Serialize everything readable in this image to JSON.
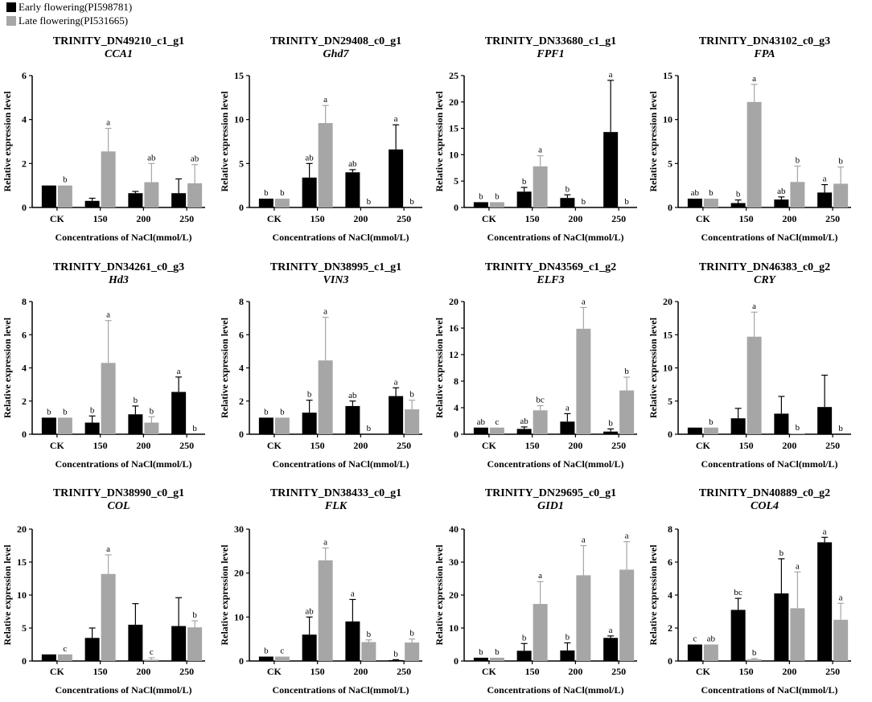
{
  "legend": {
    "early_label": "Early flowering(PI598781)",
    "late_label": "Late flowering(PI531665)",
    "early_color": "#000000",
    "late_color": "#a6a6a6"
  },
  "chart_data": [
    {
      "type": "bar",
      "title": "TRINITY_DN49210_c1_g1",
      "gene": "CCA1",
      "ylabel": "Relative expression level",
      "xlabel": "Concentrations of NaCl(mmol/L)",
      "categories": [
        "CK",
        "150",
        "200",
        "250"
      ],
      "ylim": [
        0,
        6
      ],
      "yticks": [
        "0",
        "2",
        "4",
        "6"
      ],
      "series": [
        {
          "name": "Early flowering(PI598781)",
          "values": [
            1.0,
            0.3,
            0.65,
            0.65
          ],
          "errors": [
            0,
            0.12,
            0.08,
            0.65
          ],
          "letters": [
            "",
            "",
            "",
            ""
          ]
        },
        {
          "name": "Late flowering(PI531665)",
          "values": [
            1.0,
            2.55,
            1.15,
            1.1
          ],
          "errors": [
            0,
            1.05,
            0.85,
            0.85
          ],
          "letters": [
            "b",
            "a",
            "ab",
            "ab"
          ]
        }
      ]
    },
    {
      "type": "bar",
      "title": "TRINITY_DN29408_c0_g1",
      "gene": "Ghd7",
      "ylabel": "Relative expression level",
      "xlabel": "Concentrations of NaCl(mmol/L)",
      "categories": [
        "CK",
        "150",
        "200",
        "250"
      ],
      "ylim": [
        0,
        15
      ],
      "yticks": [
        "0",
        "5",
        "10",
        "15"
      ],
      "series": [
        {
          "name": "Early flowering(PI598781)",
          "values": [
            1.0,
            3.4,
            4.0,
            6.6
          ],
          "errors": [
            0,
            1.6,
            0.3,
            2.8
          ],
          "letters": [
            "b",
            "ab",
            "ab",
            "a"
          ]
        },
        {
          "name": "Late flowering(PI531665)",
          "values": [
            1.0,
            9.6,
            0,
            0
          ],
          "errors": [
            0,
            2.0,
            0,
            0
          ],
          "letters": [
            "b",
            "a",
            "b",
            "b"
          ]
        }
      ]
    },
    {
      "type": "bar",
      "title": "TRINITY_DN33680_c1_g1",
      "gene": "FPF1",
      "ylabel": "Relative expression level",
      "xlabel": "Concentrations of NaCl(mmol/L)",
      "categories": [
        "CK",
        "150",
        "200",
        "250"
      ],
      "ylim": [
        0,
        25
      ],
      "yticks": [
        "0",
        "5",
        "10",
        "15",
        "20",
        "25"
      ],
      "series": [
        {
          "name": "Early flowering(PI598781)",
          "values": [
            1.0,
            3.0,
            1.8,
            14.3
          ],
          "errors": [
            0,
            0.8,
            0.6,
            9.8
          ],
          "letters": [
            "b",
            "b",
            "b",
            "a"
          ]
        },
        {
          "name": "Late flowering(PI531665)",
          "values": [
            1.0,
            7.8,
            0,
            0
          ],
          "errors": [
            0,
            2.0,
            0,
            0
          ],
          "letters": [
            "b",
            "a",
            "b",
            "b"
          ]
        }
      ]
    },
    {
      "type": "bar",
      "title": "TRINITY_DN43102_c0_g3",
      "gene": "FPA",
      "ylabel": "Relative expression level",
      "xlabel": "Concentrations of NaCl(mmol/L)",
      "categories": [
        "CK",
        "150",
        "200",
        "250"
      ],
      "ylim": [
        0,
        15
      ],
      "yticks": [
        "0",
        "5",
        "10",
        "15"
      ],
      "series": [
        {
          "name": "Early flowering(PI598781)",
          "values": [
            1.0,
            0.5,
            0.9,
            1.7
          ],
          "errors": [
            0,
            0.35,
            0.3,
            0.9
          ],
          "letters": [
            "ab",
            "b",
            "ab",
            "a"
          ]
        },
        {
          "name": "Late flowering(PI531665)",
          "values": [
            1.0,
            12.0,
            2.9,
            2.7
          ],
          "errors": [
            0,
            2.0,
            1.8,
            1.9
          ],
          "letters": [
            "b",
            "a",
            "b",
            "b"
          ]
        }
      ]
    },
    {
      "type": "bar",
      "title": "TRINITY_DN34261_c0_g3",
      "gene": "Hd3",
      "ylabel": "Relative expression level",
      "xlabel": "Concentrations of NaCl(mmol/L)",
      "categories": [
        "CK",
        "150",
        "200",
        "250"
      ],
      "ylim": [
        0,
        8
      ],
      "yticks": [
        "0",
        "2",
        "4",
        "6",
        "8"
      ],
      "series": [
        {
          "name": "Early flowering(PI598781)",
          "values": [
            1.0,
            0.7,
            1.2,
            2.55
          ],
          "errors": [
            0,
            0.4,
            0.5,
            0.9
          ],
          "letters": [
            "b",
            "b",
            "b",
            "a"
          ]
        },
        {
          "name": "Late flowering(PI531665)",
          "values": [
            1.0,
            4.3,
            0.7,
            0
          ],
          "errors": [
            0,
            2.55,
            0.35,
            0
          ],
          "letters": [
            "b",
            "a",
            "b",
            "b"
          ]
        }
      ]
    },
    {
      "type": "bar",
      "title": "TRINITY_DN38995_c1_g1",
      "gene": "VIN3",
      "ylabel": "Relative expression level",
      "xlabel": "Concentrations of NaCl(mmol/L)",
      "categories": [
        "CK",
        "150",
        "200",
        "250"
      ],
      "ylim": [
        0,
        8
      ],
      "yticks": [
        "0",
        "2",
        "4",
        "6",
        "8"
      ],
      "series": [
        {
          "name": "Early flowering(PI598781)",
          "values": [
            1.0,
            1.3,
            1.7,
            2.3
          ],
          "errors": [
            0,
            0.75,
            0.3,
            0.5
          ],
          "letters": [
            "b",
            "b",
            "ab",
            "a"
          ]
        },
        {
          "name": "Late flowering(PI531665)",
          "values": [
            1.0,
            4.45,
            0,
            1.5
          ],
          "errors": [
            0,
            2.6,
            0,
            0.55
          ],
          "letters": [
            "b",
            "a",
            "b",
            "b"
          ]
        }
      ]
    },
    {
      "type": "bar",
      "title": "TRINITY_DN43569_c1_g2",
      "gene": "ELF3",
      "ylabel": "Relative expression level",
      "xlabel": "Concentrations of NaCl(mmol/L)",
      "categories": [
        "CK",
        "150",
        "200",
        "250"
      ],
      "ylim": [
        0,
        20
      ],
      "yticks": [
        "0",
        "4",
        "8",
        "12",
        "16",
        "20"
      ],
      "series": [
        {
          "name": "Early flowering(PI598781)",
          "values": [
            1.0,
            0.8,
            1.9,
            0.4
          ],
          "errors": [
            0,
            0.3,
            1.2,
            0.4
          ],
          "letters": [
            "ab",
            "ab",
            "a",
            "b"
          ]
        },
        {
          "name": "Late flowering(PI531665)",
          "values": [
            1.0,
            3.6,
            15.9,
            6.6
          ],
          "errors": [
            0,
            0.7,
            3.2,
            2.0
          ],
          "letters": [
            "c",
            "bc",
            "a",
            "b"
          ]
        }
      ]
    },
    {
      "type": "bar",
      "title": "TRINITY_DN46383_c0_g2",
      "gene": "CRY",
      "ylabel": "Relative expression level",
      "xlabel": "Concentrations of NaCl(mmol/L)",
      "categories": [
        "CK",
        "150",
        "200",
        "250"
      ],
      "ylim": [
        0,
        20
      ],
      "yticks": [
        "0",
        "5",
        "10",
        "15",
        "20"
      ],
      "series": [
        {
          "name": "Early flowering(PI598781)",
          "values": [
            1.0,
            2.4,
            3.1,
            4.1
          ],
          "errors": [
            0,
            1.5,
            2.6,
            4.8
          ],
          "letters": [
            "",
            "",
            "",
            ""
          ]
        },
        {
          "name": "Late flowering(PI531665)",
          "values": [
            1.0,
            14.7,
            0.1,
            0
          ],
          "errors": [
            0,
            3.7,
            0,
            0
          ],
          "letters": [
            "b",
            "a",
            "b",
            "b"
          ]
        }
      ]
    },
    {
      "type": "bar",
      "title": "TRINITY_DN38990_c0_g1",
      "gene": "COL",
      "ylabel": "Relative expression level",
      "xlabel": "Concentrations of NaCl(mmol/L)",
      "categories": [
        "CK",
        "150",
        "200",
        "250"
      ],
      "ylim": [
        0,
        20
      ],
      "yticks": [
        "0",
        "5",
        "10",
        "15",
        "20"
      ],
      "series": [
        {
          "name": "Early flowering(PI598781)",
          "values": [
            1.0,
            3.5,
            5.5,
            5.3
          ],
          "errors": [
            0,
            1.5,
            3.2,
            4.3
          ],
          "letters": [
            "",
            "",
            "",
            ""
          ]
        },
        {
          "name": "Late flowering(PI531665)",
          "values": [
            1.0,
            13.2,
            0.2,
            5.1
          ],
          "errors": [
            0,
            2.9,
            0.3,
            1.0
          ],
          "letters": [
            "c",
            "a",
            "c",
            "b"
          ]
        }
      ]
    },
    {
      "type": "bar",
      "title": "TRINITY_DN38433_c0_g1",
      "gene": "FLK",
      "ylabel": "Relative expression level",
      "xlabel": "Concentrations of NaCl(mmol/L)",
      "categories": [
        "CK",
        "150",
        "200",
        "250"
      ],
      "ylim": [
        0,
        30
      ],
      "yticks": [
        "0",
        "10",
        "20",
        "30"
      ],
      "series": [
        {
          "name": "Early flowering(PI598781)",
          "values": [
            1.0,
            6.0,
            9.0,
            0.2
          ],
          "errors": [
            0,
            4.0,
            5.0,
            0.1
          ],
          "letters": [
            "b",
            "ab",
            "a",
            "b"
          ]
        },
        {
          "name": "Late flowering(PI531665)",
          "values": [
            1.0,
            22.9,
            4.3,
            4.2
          ],
          "errors": [
            0,
            2.8,
            0.5,
            0.8
          ],
          "letters": [
            "c",
            "a",
            "b",
            "b"
          ]
        }
      ]
    },
    {
      "type": "bar",
      "title": "TRINITY_DN29695_c0_g1",
      "gene": "GID1",
      "ylabel": "Relative expression level",
      "xlabel": "Concentrations of NaCl(mmol/L)",
      "categories": [
        "CK",
        "150",
        "200",
        "250"
      ],
      "ylim": [
        0,
        40
      ],
      "yticks": [
        "0",
        "10",
        "20",
        "30",
        "40"
      ],
      "series": [
        {
          "name": "Early flowering(PI598781)",
          "values": [
            1.0,
            3.1,
            3.2,
            7.0
          ],
          "errors": [
            0,
            2.2,
            2.3,
            0.6
          ],
          "letters": [
            "b",
            "b",
            "b",
            "a"
          ]
        },
        {
          "name": "Late flowering(PI531665)",
          "values": [
            1.0,
            17.3,
            26.0,
            27.7
          ],
          "errors": [
            0,
            6.8,
            9.0,
            8.5
          ],
          "letters": [
            "b",
            "a",
            "a",
            "a"
          ]
        }
      ]
    },
    {
      "type": "bar",
      "title": "TRINITY_DN40889_c0_g2",
      "gene": "COL4",
      "ylabel": "Relative expression level",
      "xlabel": "Concentrations of NaCl(mmol/L)",
      "categories": [
        "CK",
        "150",
        "200",
        "250"
      ],
      "ylim": [
        0,
        8
      ],
      "yticks": [
        "0",
        "2",
        "4",
        "6",
        "8"
      ],
      "series": [
        {
          "name": "Early flowering(PI598781)",
          "values": [
            1.0,
            3.1,
            4.1,
            7.2
          ],
          "errors": [
            0,
            0.7,
            2.1,
            0.3
          ],
          "letters": [
            "c",
            "bc",
            "b",
            "a"
          ]
        },
        {
          "name": "Late flowering(PI531665)",
          "values": [
            1.0,
            0.1,
            3.2,
            2.5
          ],
          "errors": [
            0,
            0.05,
            2.2,
            1.0
          ],
          "letters": [
            "ab",
            "b",
            "a",
            "a"
          ]
        }
      ]
    }
  ]
}
